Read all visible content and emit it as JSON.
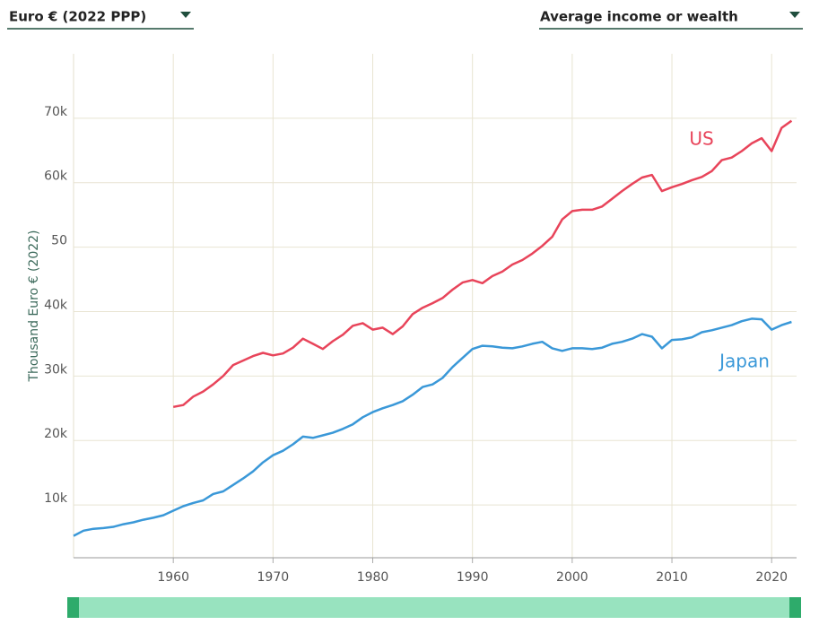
{
  "controls": {
    "unit": "Euro € (2022 PPP)",
    "metric": "Average income or wealth"
  },
  "chart_data": {
    "type": "line",
    "y_label": "Thousand Euro € (2022)",
    "x": [
      1950,
      1951,
      1952,
      1953,
      1954,
      1955,
      1956,
      1957,
      1958,
      1959,
      1960,
      1961,
      1962,
      1963,
      1964,
      1965,
      1966,
      1967,
      1968,
      1969,
      1970,
      1971,
      1972,
      1973,
      1974,
      1975,
      1976,
      1977,
      1978,
      1979,
      1980,
      1981,
      1982,
      1983,
      1984,
      1985,
      1986,
      1987,
      1988,
      1989,
      1990,
      1991,
      1992,
      1993,
      1994,
      1995,
      1996,
      1997,
      1998,
      1999,
      2000,
      2001,
      2002,
      2003,
      2004,
      2005,
      2006,
      2007,
      2008,
      2009,
      2010,
      2011,
      2012,
      2013,
      2014,
      2015,
      2016,
      2017,
      2018,
      2019,
      2020,
      2021,
      2022
    ],
    "series": [
      {
        "name": "US",
        "color": "#e8445a",
        "values": [
          null,
          null,
          null,
          null,
          null,
          null,
          null,
          null,
          null,
          null,
          25.2,
          25.5,
          26.8,
          27.6,
          28.7,
          30.0,
          31.7,
          32.4,
          33.1,
          33.6,
          33.2,
          33.5,
          34.4,
          35.8,
          35.0,
          34.2,
          35.4,
          36.4,
          37.8,
          38.2,
          37.2,
          37.5,
          36.5,
          37.7,
          39.6,
          40.6,
          41.3,
          42.1,
          43.4,
          44.5,
          44.9,
          44.4,
          45.5,
          46.2,
          47.3,
          48.0,
          49.0,
          50.2,
          51.6,
          54.3,
          55.6,
          55.8,
          55.8,
          56.3,
          57.5,
          58.7,
          59.8,
          60.8,
          61.2,
          58.7,
          59.3,
          59.8,
          60.4,
          60.9,
          61.8,
          63.5,
          63.9,
          64.9,
          66.1,
          66.9,
          64.9,
          68.5,
          69.6
        ]
      },
      {
        "name": "Japan",
        "color": "#3a98d8",
        "values": [
          5.2,
          6.0,
          6.3,
          6.4,
          6.6,
          7.0,
          7.3,
          7.7,
          8.0,
          8.4,
          9.1,
          9.8,
          10.3,
          10.7,
          11.7,
          12.1,
          13.1,
          14.1,
          15.2,
          16.6,
          17.7,
          18.4,
          19.4,
          20.6,
          20.4,
          20.8,
          21.2,
          21.8,
          22.5,
          23.6,
          24.4,
          25.0,
          25.5,
          26.1,
          27.1,
          28.3,
          28.7,
          29.7,
          31.4,
          32.8,
          34.2,
          34.7,
          34.6,
          34.4,
          34.3,
          34.6,
          35.0,
          35.3,
          34.3,
          33.9,
          34.3,
          34.3,
          34.2,
          34.4,
          35.0,
          35.3,
          35.8,
          36.5,
          36.1,
          34.3,
          35.6,
          35.7,
          36.0,
          36.8,
          37.1,
          37.5,
          37.9,
          38.5,
          38.9,
          38.8,
          37.2,
          37.9,
          38.4
        ]
      }
    ],
    "xlim": [
      1950,
      2022.5
    ],
    "xticks": [
      1960,
      1970,
      1980,
      1990,
      2000,
      2010,
      2020
    ],
    "ylim": [
      1.8,
      80
    ],
    "yticks": [
      {
        "value": 10,
        "label": "10k"
      },
      {
        "value": 20,
        "label": "20k"
      },
      {
        "value": 30,
        "label": "30k"
      },
      {
        "value": 40,
        "label": "40k"
      },
      50,
      {
        "value": 60,
        "label": "60k"
      },
      {
        "value": 70,
        "label": "70k"
      }
    ],
    "grid": true
  }
}
